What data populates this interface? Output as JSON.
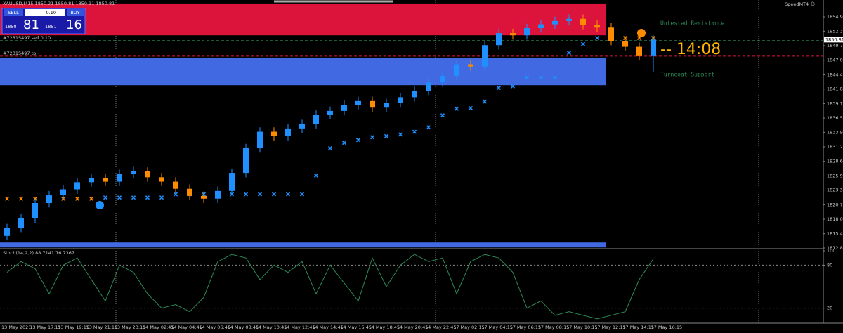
{
  "window": {
    "symbol_info": "XAUUSD,M15  1850.21 1850.81 1850.11 1850.81",
    "brand": "SpeedMT4 ☺"
  },
  "trade_panel": {
    "sell": "SELL",
    "lot": "0.10",
    "buy": "BUY",
    "bid_big": "1850",
    "bid_small": "81",
    "ask_big": "1851",
    "ask_small": "16"
  },
  "chart_data": [
    {
      "type": "candlestick",
      "ylim": [
        1812.8,
        1858.03
      ],
      "yticks": [
        1854.95,
        1852.35,
        1849.7,
        1847.05,
        1844.4,
        1841.8,
        1839.15,
        1836.5,
        1833.9,
        1831.25,
        1828.6,
        1825.95,
        1823.35,
        1820.7,
        1818.05,
        1815.4,
        1812.8
      ],
      "current_price": 1850.81,
      "up_color": "#1e90ff",
      "down_color": "#ff8c00",
      "open": [
        1815.0,
        1816.5,
        1818.2,
        1821.0,
        1822.4,
        1823.5,
        1824.8,
        1825.6,
        1824.9,
        1826.3,
        1826.8,
        1825.7,
        1824.9,
        1823.6,
        1822.3,
        1821.8,
        1823.2,
        1826.5,
        1831.0,
        1834.0,
        1833.2,
        1834.6,
        1835.4,
        1837.1,
        1837.8,
        1838.9,
        1839.6,
        1838.4,
        1839.2,
        1840.3,
        1841.5,
        1843.0,
        1844.2,
        1846.3,
        1845.9,
        1849.8,
        1852.0,
        1851.6,
        1852.9,
        1853.6,
        1854.2,
        1854.6,
        1853.5,
        1853.0,
        1850.6,
        1849.5,
        1847.8
      ],
      "close": [
        1816.5,
        1818.2,
        1821.0,
        1822.4,
        1823.5,
        1824.8,
        1825.6,
        1824.9,
        1826.3,
        1826.8,
        1825.7,
        1824.9,
        1823.6,
        1822.3,
        1821.8,
        1823.2,
        1826.5,
        1831.0,
        1834.0,
        1833.2,
        1834.6,
        1835.4,
        1837.1,
        1837.8,
        1838.9,
        1839.6,
        1838.4,
        1839.2,
        1840.3,
        1841.5,
        1843.0,
        1844.2,
        1846.3,
        1845.9,
        1849.8,
        1852.0,
        1851.6,
        1852.9,
        1853.6,
        1854.2,
        1854.6,
        1853.5,
        1853.0,
        1850.6,
        1849.5,
        1847.8,
        1850.81
      ],
      "high": [
        1817.2,
        1819.0,
        1821.8,
        1823.2,
        1824.3,
        1825.6,
        1826.4,
        1826.3,
        1827.1,
        1827.6,
        1827.5,
        1826.5,
        1825.7,
        1824.4,
        1823.1,
        1824.0,
        1827.3,
        1831.8,
        1834.8,
        1834.8,
        1835.4,
        1836.2,
        1837.9,
        1838.6,
        1839.7,
        1840.4,
        1840.4,
        1840.0,
        1841.1,
        1842.3,
        1843.8,
        1845.0,
        1847.1,
        1847.1,
        1850.6,
        1852.8,
        1852.8,
        1853.7,
        1854.4,
        1855.0,
        1855.4,
        1855.4,
        1854.3,
        1853.8,
        1851.4,
        1850.3,
        1851.6
      ],
      "low": [
        1814.2,
        1815.7,
        1817.4,
        1820.2,
        1821.6,
        1822.7,
        1824.0,
        1824.1,
        1824.1,
        1825.5,
        1824.9,
        1824.1,
        1822.8,
        1821.5,
        1821.0,
        1821.0,
        1822.4,
        1825.7,
        1830.2,
        1832.4,
        1832.4,
        1833.8,
        1834.6,
        1836.3,
        1837.0,
        1838.1,
        1837.6,
        1837.6,
        1838.4,
        1839.5,
        1840.7,
        1842.2,
        1843.4,
        1845.1,
        1845.1,
        1849.0,
        1850.8,
        1850.8,
        1852.1,
        1852.8,
        1853.4,
        1852.7,
        1852.2,
        1849.8,
        1848.7,
        1847.0,
        1845.0
      ],
      "trail": [
        1821.8,
        1821.8,
        1821.8,
        1821.8,
        1821.8,
        1821.8,
        1821.8,
        1822.0,
        1822.0,
        1822.0,
        1822.0,
        1822.0,
        1822.6,
        1822.6,
        1822.6,
        1822.6,
        1822.6,
        1822.6,
        1822.6,
        1822.6,
        1822.6,
        1822.6,
        1826.0,
        1831.0,
        1832.0,
        1832.5,
        1833.0,
        1833.2,
        1833.5,
        1834.0,
        1834.8,
        1837.0,
        1838.2,
        1838.3,
        1839.5,
        1842.0,
        1842.3,
        1843.9,
        1843.9,
        1843.9,
        1848.4,
        1850.0,
        1851.1,
        1851.1,
        1851.1,
        1851.1,
        1851.1
      ],
      "trail_colors": [
        "#ff8c00",
        "#ff8c00",
        "#ff8c00",
        "#ff8c00",
        "#ff8c00",
        "#ff8c00",
        "#ff8c00",
        "#1e90ff",
        "#1e90ff",
        "#1e90ff",
        "#1e90ff",
        "#1e90ff",
        "#1e90ff",
        "#1e90ff",
        "#1e90ff",
        "#1e90ff",
        "#1e90ff",
        "#1e90ff",
        "#1e90ff",
        "#1e90ff",
        "#1e90ff",
        "#1e90ff",
        "#1e90ff",
        "#1e90ff",
        "#1e90ff",
        "#1e90ff",
        "#1e90ff",
        "#1e90ff",
        "#1e90ff",
        "#1e90ff",
        "#1e90ff",
        "#1e90ff",
        "#1e90ff",
        "#1e90ff",
        "#1e90ff",
        "#1e90ff",
        "#1e90ff",
        "#1e90ff",
        "#1e90ff",
        "#1e90ff",
        "#1e90ff",
        "#1e90ff",
        "#1e90ff",
        "#ff8c00",
        "#ff8c00",
        "#ff8c00",
        "#ff8c00"
      ],
      "zones": [
        {
          "label": "Untested Resistance",
          "color": "#dc143c",
          "range": [
            1851.6,
            1857.4
          ]
        },
        {
          "label": "Turncoat Support",
          "color": "#4169e1",
          "range": [
            1842.5,
            1847.5
          ]
        },
        {
          "color": "#4169e1",
          "range": [
            1812.9,
            1813.8
          ]
        }
      ],
      "orders": [
        {
          "label": "#72315497 sell 0.10",
          "price": 1850.6,
          "color": "#3cb371"
        },
        {
          "label": "#72315497 tp",
          "price": 1847.8,
          "color": "#dc143c"
        }
      ],
      "countdown": "-- 14:08",
      "time_labels": [
        "13 May 2021",
        "13 May 17:15",
        "13 May 19:15",
        "13 May 21:15",
        "13 May 23:15",
        "14 May 02:45",
        "14 May 04:45",
        "14 May 06:45",
        "14 May 08:45",
        "14 May 10:45",
        "14 May 12:45",
        "14 May 14:45",
        "14 May 16:45",
        "14 May 18:45",
        "14 May 20:45",
        "14 May 22:45",
        "17 May 02:15",
        "17 May 04:15",
        "17 May 06:15",
        "17 May 08:15",
        "17 May 10:15",
        "17 May 12:15",
        "17 May 14:15",
        "17 May 16:15"
      ]
    },
    {
      "type": "line",
      "title": "Stoch(14,2,2) 88.7141 76.7367",
      "color": "#2e8b57",
      "ylim": [
        0,
        100
      ],
      "yticks": [
        20,
        80,
        100
      ],
      "levels": [
        20,
        80
      ],
      "values": [
        70,
        85,
        75,
        40,
        80,
        90,
        60,
        30,
        80,
        70,
        40,
        20,
        25,
        15,
        35,
        85,
        95,
        90,
        60,
        80,
        70,
        85,
        40,
        80,
        55,
        30,
        90,
        50,
        80,
        95,
        85,
        90,
        40,
        85,
        95,
        90,
        70,
        20,
        30,
        10,
        15,
        10,
        5,
        10,
        15,
        60,
        88.7141
      ]
    }
  ]
}
